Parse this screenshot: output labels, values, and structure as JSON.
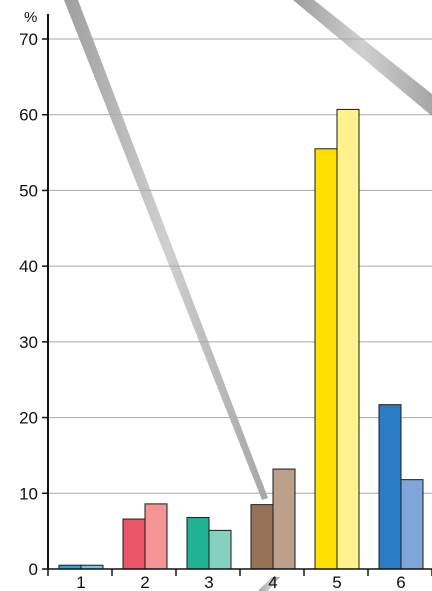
{
  "chart_data": {
    "type": "bar",
    "title": "",
    "xlabel": "",
    "ylabel": "%",
    "ylim": [
      0,
      70
    ],
    "yticks": [
      0,
      10,
      20,
      30,
      40,
      50,
      60,
      70
    ],
    "categories": [
      "1",
      "2",
      "3",
      "4",
      "5",
      "6"
    ],
    "grid": true,
    "series": [
      {
        "values": [
          0.5,
          6.6,
          6.8,
          8.5,
          55.5,
          21.7
        ]
      },
      {
        "values": [
          0.5,
          8.6,
          5.1,
          13.2,
          60.7,
          11.8
        ]
      }
    ],
    "colors": {
      "series_a": [
        "#2aa8d8",
        "#ec5468",
        "#1fb293",
        "#967258",
        "#ffe000",
        "#2a7cc7"
      ],
      "series_b": [
        "#6ec7e6",
        "#f49494",
        "#86d0bf",
        "#bca08b",
        "#fff18c",
        "#7ea6d8"
      ],
      "grid": "#a8a8a8",
      "axis": "#111111",
      "decor_stripe": "#b3b3b3"
    }
  }
}
